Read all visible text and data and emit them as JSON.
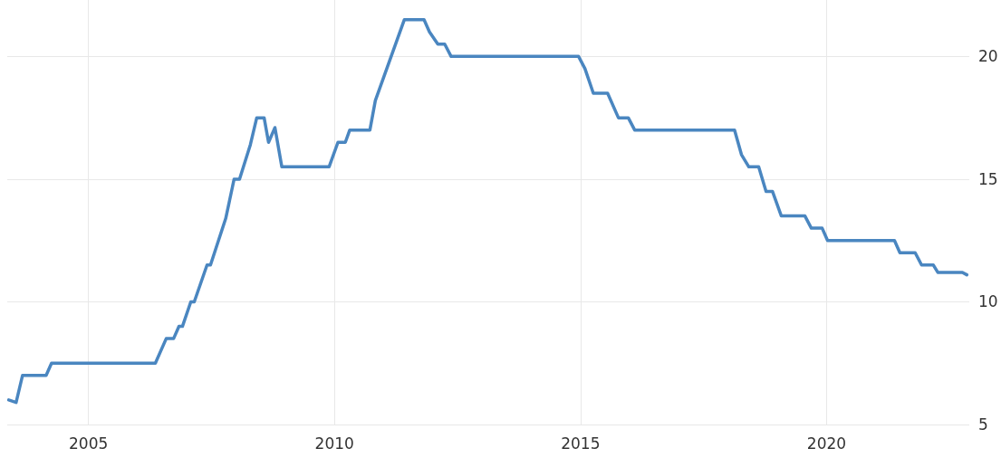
{
  "chart_data": {
    "type": "line",
    "x": [
      2003.38,
      2003.53,
      2003.66,
      2004.14,
      2004.25,
      2006.36,
      2006.58,
      2006.73,
      2006.84,
      2006.91,
      2007.08,
      2007.15,
      2007.41,
      2007.48,
      2007.79,
      2007.96,
      2008.07,
      2008.29,
      2008.42,
      2008.57,
      2008.66,
      2008.79,
      2008.93,
      2009.89,
      2010.07,
      2010.22,
      2010.31,
      2010.72,
      2010.83,
      2011.42,
      2011.82,
      2011.93,
      2012.1,
      2012.24,
      2012.37,
      2014.96,
      2015.09,
      2015.26,
      2015.55,
      2015.77,
      2015.97,
      2016.1,
      2018.13,
      2018.27,
      2018.42,
      2018.62,
      2018.77,
      2018.9,
      2019.08,
      2019.56,
      2019.69,
      2019.91,
      2020.02,
      2021.38,
      2021.49,
      2021.8,
      2021.93,
      2022.17,
      2022.26,
      2022.76,
      2022.85
    ],
    "series": [
      {
        "color": "#4a86c0",
        "values": [
          6.0,
          5.9,
          7.0,
          7.0,
          7.5,
          7.5,
          8.5,
          8.5,
          9.0,
          9.0,
          10.0,
          10.0,
          11.5,
          11.5,
          13.4,
          15.0,
          15.0,
          16.4,
          17.5,
          17.5,
          16.5,
          17.1,
          15.5,
          15.5,
          16.5,
          16.5,
          17.0,
          17.0,
          18.2,
          21.5,
          21.5,
          21.0,
          20.5,
          20.5,
          20.0,
          20.0,
          19.5,
          18.5,
          18.5,
          17.5,
          17.5,
          17.0,
          17.0,
          16.0,
          15.5,
          15.5,
          14.5,
          14.5,
          13.5,
          13.5,
          13.0,
          13.0,
          12.5,
          12.5,
          12.0,
          12.0,
          11.5,
          11.5,
          11.2,
          11.2,
          11.1
        ]
      }
    ],
    "xlim": [
      2003.35,
      2022.9
    ],
    "xticks": [
      2005,
      2010,
      2015,
      2020
    ],
    "ylim": [
      5,
      22.3
    ],
    "yticks": [
      5,
      10,
      15,
      20
    ],
    "grid": true,
    "marker": "none",
    "line_style": "solid"
  }
}
